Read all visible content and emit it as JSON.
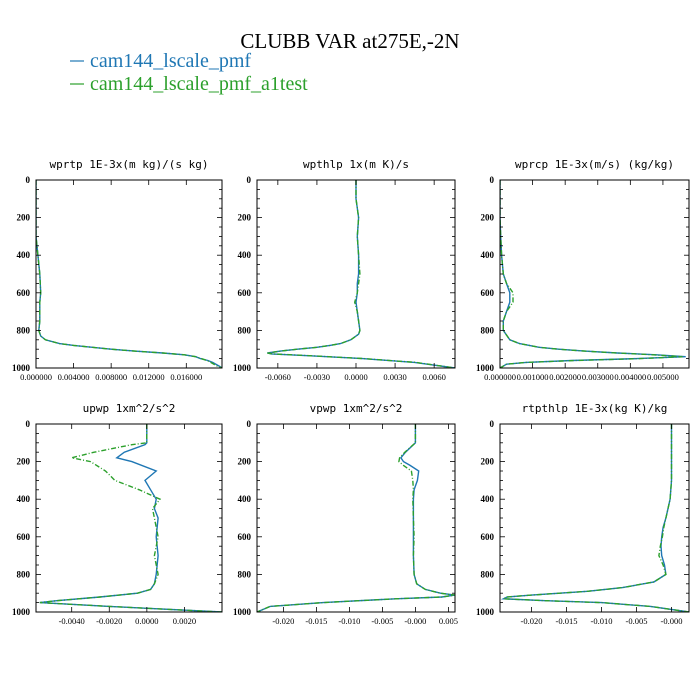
{
  "figure": {
    "title": "CLUBB VAR at275E,-2N",
    "legend": [
      {
        "label": "cam144_lscale_pmf",
        "color": "#1f77b4",
        "dashed": false
      },
      {
        "label": "cam144_lscale_pmf_a1test",
        "color": "#2ca02c",
        "dashed": true
      }
    ]
  },
  "chart_data": [
    {
      "type": "line",
      "title": "wprtp  1E-3x(m kg)/(s kg)",
      "xlim": [
        0,
        0.0198
      ],
      "ylim": [
        1000,
        0
      ],
      "yticks": [
        0,
        200,
        400,
        600,
        800,
        1000
      ],
      "xticks": [
        0,
        0.004,
        0.008,
        0.012,
        0.016
      ],
      "xtick_labels": [
        "0.000000",
        "0.004000",
        "0.008000",
        "0.012000",
        "0.016000"
      ],
      "grid": false,
      "series": [
        {
          "y": [
            0,
            100,
            200,
            300,
            400,
            500,
            600,
            650,
            700,
            750,
            800,
            830,
            850,
            870,
            880,
            890,
            900,
            910,
            920,
            930,
            940,
            950,
            960,
            970,
            990,
            1000
          ],
          "x": [
            0,
            0,
            0,
            0,
            0.0002,
            0.0004,
            0.0005,
            0.0004,
            0.0004,
            0.0004,
            0.0003,
            0.0005,
            0.001,
            0.0025,
            0.004,
            0.006,
            0.008,
            0.0105,
            0.0135,
            0.0158,
            0.017,
            0.0175,
            0.0183,
            0.0188,
            0.0195,
            0.0198
          ]
        },
        {
          "y": [
            0,
            100,
            200,
            300,
            400,
            500,
            600,
            650,
            700,
            750,
            800,
            830,
            850,
            870,
            880,
            890,
            900,
            910,
            920,
            930,
            940,
            950,
            960,
            970,
            990,
            1000
          ],
          "x": [
            0,
            0,
            0,
            0,
            0.0002,
            0.0004,
            0.0005,
            0.0004,
            0.0004,
            0.0004,
            0.0003,
            0.0005,
            0.001,
            0.0025,
            0.004,
            0.006,
            0.008,
            0.0105,
            0.0135,
            0.0158,
            0.017,
            0.0176,
            0.0182,
            0.0186,
            0.0193,
            0.0198
          ]
        }
      ]
    },
    {
      "type": "line",
      "title": "wpthlp  1x(m K)/s",
      "xlim": [
        -0.0076,
        0.0076
      ],
      "ylim": [
        1000,
        0
      ],
      "yticks": [
        0,
        200,
        400,
        600,
        800,
        1000
      ],
      "xticks": [
        -0.006,
        -0.003,
        0,
        0.003,
        0.006
      ],
      "xtick_labels": [
        "-0.0060",
        "-0.0030",
        "0.0000",
        "0.0030",
        "0.0060"
      ],
      "grid": false,
      "series": [
        {
          "y": [
            0,
            100,
            150,
            200,
            300,
            400,
            500,
            550,
            600,
            650,
            700,
            750,
            800,
            820,
            850,
            870,
            880,
            890,
            900,
            910,
            920,
            925,
            935,
            950,
            970,
            1000
          ],
          "x": [
            0,
            0,
            0.0001,
            0.0002,
            0.0001,
            0.0002,
            0.0002,
            0.0001,
            0.0001,
            0,
            0.0001,
            0.0002,
            0.0003,
            0.0002,
            -0.0004,
            -0.0012,
            -0.002,
            -0.003,
            -0.0045,
            -0.0058,
            -0.0068,
            -0.0065,
            -0.0035,
            0.0005,
            0.0045,
            0.0076
          ]
        },
        {
          "y": [
            0,
            100,
            150,
            200,
            300,
            400,
            500,
            550,
            600,
            650,
            700,
            750,
            800,
            820,
            850,
            870,
            880,
            890,
            900,
            910,
            920,
            925,
            935,
            950,
            970,
            1000
          ],
          "x": [
            0,
            0,
            0.0001,
            0.0002,
            0.0001,
            0.0002,
            0.0003,
            0.0002,
            0.0001,
            -0.0001,
            0.0001,
            0.0002,
            0.0003,
            0.0002,
            -0.0004,
            -0.0012,
            -0.002,
            -0.003,
            -0.0045,
            -0.0058,
            -0.0068,
            -0.0064,
            -0.0034,
            0.0006,
            0.0046,
            0.0076
          ]
        }
      ]
    },
    {
      "type": "line",
      "title": "wprcp  1E-3x(m/s) (kg/kg)",
      "xlim": [
        0,
        0.0058
      ],
      "ylim": [
        1000,
        0
      ],
      "yticks": [
        0,
        200,
        400,
        600,
        800,
        1000
      ],
      "xticks": [
        0,
        0.001,
        0.002,
        0.003,
        0.004,
        0.005
      ],
      "xtick_labels": [
        "0.000000",
        "0.001000",
        "0.002000",
        "0.003000",
        "0.004000",
        "0.005000"
      ],
      "grid": false,
      "series": [
        {
          "y": [
            0,
            100,
            200,
            300,
            400,
            500,
            550,
            600,
            650,
            700,
            750,
            800,
            850,
            870,
            890,
            900,
            910,
            920,
            930,
            940,
            950,
            960,
            970,
            980,
            1000
          ],
          "x": [
            0,
            0,
            0,
            2e-05,
            5e-05,
            0.0001,
            0.0002,
            0.0003,
            0.0003,
            0.0002,
            0.0001,
            0.0001,
            0.0003,
            0.0006,
            0.0012,
            0.0018,
            0.0026,
            0.0036,
            0.0048,
            0.0057,
            0.0042,
            0.0022,
            0.0008,
            0.0002,
            0
          ]
        },
        {
          "y": [
            0,
            100,
            200,
            300,
            400,
            500,
            550,
            600,
            650,
            700,
            750,
            800,
            850,
            870,
            890,
            900,
            910,
            920,
            930,
            940,
            950,
            960,
            970,
            980,
            1000
          ],
          "x": [
            0,
            0,
            0,
            2e-05,
            5e-05,
            0.0001,
            0.0002,
            0.0004,
            0.0004,
            0.0002,
            0.0001,
            0.0001,
            0.0003,
            0.0006,
            0.0012,
            0.0018,
            0.0026,
            0.0036,
            0.0047,
            0.0056,
            0.0043,
            0.0023,
            0.0008,
            0.0002,
            0
          ]
        }
      ]
    },
    {
      "type": "line",
      "title": "upwp  1xm^2/s^2",
      "xlim": [
        -0.0059,
        0.004
      ],
      "ylim": [
        1000,
        0
      ],
      "yticks": [
        0,
        200,
        400,
        600,
        800,
        1000
      ],
      "xticks": [
        -0.004,
        -0.002,
        0,
        0.002
      ],
      "xtick_labels": [
        "-0.0040",
        "-0.0020",
        "0.0000",
        "0.0020"
      ],
      "grid": false,
      "series": [
        {
          "y": [
            0,
            100,
            110,
            150,
            180,
            200,
            250,
            300,
            350,
            400,
            450,
            500,
            600,
            700,
            800,
            850,
            880,
            900,
            920,
            940,
            950,
            970,
            1000
          ],
          "x": [
            0,
            0,
            -0.0001,
            -0.0012,
            -0.0016,
            -0.0008,
            0.0005,
            -0.0001,
            0.0002,
            0.0005,
            0.0004,
            0.0006,
            0.0005,
            0.0006,
            0.0005,
            0.0004,
            0.0002,
            -0.0005,
            -0.0025,
            -0.0048,
            -0.0057,
            -0.002,
            0.004
          ]
        },
        {
          "y": [
            0,
            100,
            110,
            150,
            180,
            200,
            250,
            300,
            350,
            400,
            450,
            500,
            600,
            700,
            800,
            850,
            880,
            900,
            920,
            940,
            950,
            970,
            1000
          ],
          "x": [
            0,
            0,
            -0.0008,
            -0.0028,
            -0.004,
            -0.003,
            -0.0022,
            -0.0017,
            -0.0004,
            0.0007,
            0.0003,
            0.0004,
            0.0006,
            0.0004,
            0.0006,
            0.0004,
            0.0002,
            -0.0005,
            -0.0025,
            -0.0048,
            -0.0057,
            -0.002,
            0.004
          ]
        }
      ]
    },
    {
      "type": "line",
      "title": "vpwp  1xm^2/s^2",
      "xlim": [
        -0.024,
        0.006
      ],
      "ylim": [
        1000,
        0
      ],
      "yticks": [
        0,
        200,
        400,
        600,
        800,
        1000
      ],
      "xticks": [
        -0.02,
        -0.015,
        -0.01,
        -0.005,
        0,
        0.005
      ],
      "xtick_labels": [
        "-0.020",
        "-0.015",
        "-0.010",
        "-0.005",
        "-0.000",
        "0.005"
      ],
      "grid": false,
      "series": [
        {
          "y": [
            0,
            100,
            150,
            180,
            200,
            220,
            250,
            300,
            350,
            400,
            500,
            600,
            700,
            800,
            850,
            880,
            900,
            910,
            920,
            930,
            950,
            970,
            1000
          ],
          "x": [
            0,
            0,
            -0.0015,
            -0.0022,
            -0.0018,
            -0.0008,
            0.0005,
            0.0003,
            -0.0002,
            -0.0003,
            -0.0003,
            -0.0003,
            -0.0003,
            -0.0002,
            0.0002,
            0.0015,
            0.0038,
            0.006,
            0.004,
            -0.003,
            -0.014,
            -0.022,
            -0.024
          ]
        },
        {
          "y": [
            0,
            100,
            150,
            180,
            200,
            220,
            250,
            300,
            350,
            400,
            500,
            600,
            700,
            800,
            850,
            880,
            900,
            910,
            920,
            930,
            950,
            970,
            1000
          ],
          "x": [
            0,
            0,
            -0.0016,
            -0.0024,
            -0.0025,
            -0.0018,
            -0.0006,
            -0.0004,
            -0.0003,
            -0.0004,
            -0.0003,
            -0.0002,
            -0.0003,
            -0.0002,
            0.0002,
            0.0015,
            0.0038,
            0.006,
            0.004,
            -0.003,
            -0.014,
            -0.022,
            -0.024
          ]
        }
      ]
    },
    {
      "type": "line",
      "title": "rtpthlp  1E-3x(kg K)/kg",
      "xlim": [
        -0.0245,
        0.0025
      ],
      "ylim": [
        1000,
        0
      ],
      "yticks": [
        0,
        200,
        400,
        600,
        800,
        1000
      ],
      "xticks": [
        -0.02,
        -0.015,
        -0.01,
        -0.005,
        0
      ],
      "xtick_labels": [
        "-0.020",
        "-0.015",
        "-0.010",
        "-0.005",
        "-0.000"
      ],
      "grid": false,
      "series": [
        {
          "y": [
            0,
            100,
            200,
            300,
            400,
            500,
            550,
            600,
            650,
            700,
            750,
            800,
            840,
            870,
            890,
            900,
            910,
            920,
            930,
            940,
            950,
            970,
            1000
          ],
          "x": [
            0,
            0,
            0,
            0,
            -0.0002,
            -0.0008,
            -0.0012,
            -0.0014,
            -0.0015,
            -0.0014,
            -0.001,
            -0.0008,
            -0.0025,
            -0.007,
            -0.012,
            -0.016,
            -0.02,
            -0.0235,
            -0.024,
            -0.018,
            -0.01,
            -0.003,
            0.0025
          ]
        },
        {
          "y": [
            0,
            100,
            200,
            300,
            400,
            500,
            550,
            600,
            650,
            700,
            750,
            800,
            840,
            870,
            890,
            900,
            910,
            920,
            930,
            940,
            950,
            970,
            1000
          ],
          "x": [
            0,
            0,
            0,
            0,
            -0.0002,
            -0.0008,
            -0.0011,
            -0.0013,
            -0.0016,
            -0.0018,
            -0.0012,
            -0.0008,
            -0.0025,
            -0.007,
            -0.012,
            -0.016,
            -0.02,
            -0.0235,
            -0.024,
            -0.018,
            -0.01,
            -0.003,
            0.0025
          ]
        }
      ]
    }
  ]
}
